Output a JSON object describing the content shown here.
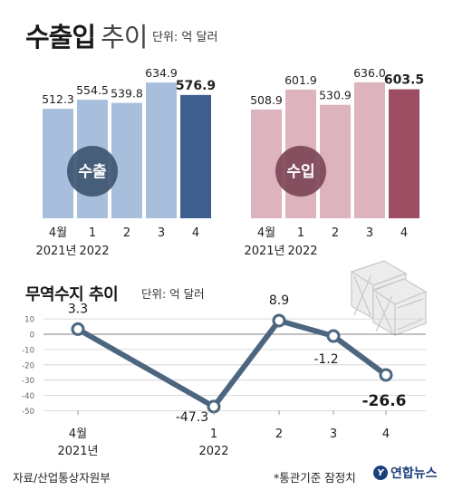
{
  "header": {
    "title_bold": "수출입",
    "title_light": "추이",
    "unit": "단위: 억 달러"
  },
  "chart_data": [
    {
      "type": "bar",
      "name_label": "수출",
      "categories": [
        "4월",
        "1",
        "2",
        "3",
        "4"
      ],
      "year_labels": [
        "2021년",
        "2022"
      ],
      "values": [
        512.3,
        554.5,
        539.8,
        634.9,
        576.9
      ],
      "value_labels": [
        "512.3",
        "554.5",
        "539.8",
        "634.9",
        "576.9"
      ],
      "highlight_index": 4,
      "colors": {
        "bar": "#a8bedd",
        "highlight": "#3e5f8e",
        "badge": "#3e5670"
      }
    },
    {
      "type": "bar",
      "name_label": "수입",
      "categories": [
        "4월",
        "1",
        "2",
        "3",
        "4"
      ],
      "year_labels": [
        "2021년",
        "2022"
      ],
      "values": [
        508.9,
        601.9,
        530.9,
        636.0,
        603.5
      ],
      "value_labels": [
        "508.9",
        "601.9",
        "530.9",
        "636.0",
        "603.5"
      ],
      "highlight_index": 4,
      "colors": {
        "bar": "#ddb3bd",
        "highlight": "#9d4e62",
        "badge": "#7d4658"
      }
    },
    {
      "type": "line",
      "title": "무역수지 추이",
      "unit": "단위: 억 달러",
      "categories": [
        "4월",
        "1",
        "2",
        "3",
        "4"
      ],
      "year_labels": [
        "2021년",
        "2022"
      ],
      "values": [
        3.3,
        -47.3,
        8.9,
        -1.2,
        -26.6
      ],
      "value_labels": [
        "3.3",
        "-47.3",
        "8.9",
        "-1.2",
        "-26.6"
      ],
      "highlight_index": 4,
      "ylim": [
        -50,
        10
      ],
      "yticks": [
        10,
        0,
        -10,
        -20,
        -30,
        -40,
        -50
      ],
      "grid": true,
      "colors": {
        "line": "#4d6680"
      }
    }
  ],
  "footer": {
    "source": "자료/산업통상자원부",
    "note": "*통관기준 잠정치",
    "brand": "연합뉴스",
    "brand_mark": "Y"
  },
  "decoration": {
    "icon": "wooden-crates-icon"
  }
}
